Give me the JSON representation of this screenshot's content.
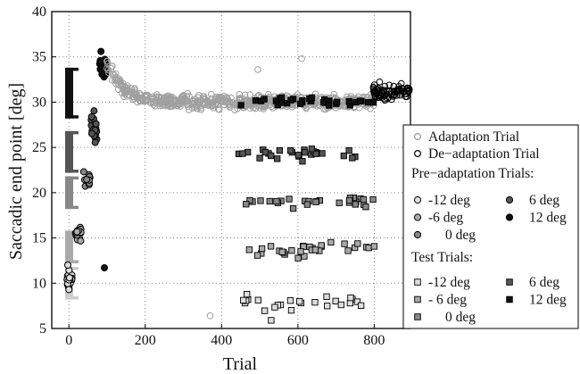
{
  "chart_data": {
    "type": "scatter",
    "xlabel": "Trial",
    "ylabel": "Saccadic end point [deg]",
    "xlim": [
      -45,
      895
    ],
    "ylim": [
      5,
      40
    ],
    "xticks": [
      0,
      200,
      400,
      600,
      800
    ],
    "yticks": [
      5,
      10,
      15,
      20,
      25,
      30,
      35,
      40
    ],
    "grid": true,
    "legend_position": "right",
    "target_bars": [
      {
        "y_low": 8.2,
        "y_high": 11.8,
        "color": "#cccccc"
      },
      {
        "y_low": 12.2,
        "y_high": 15.8,
        "color": "#aaaaaa"
      },
      {
        "y_low": 18.2,
        "y_high": 21.8,
        "color": "#888888"
      },
      {
        "y_low": 22.2,
        "y_high": 26.8,
        "color": "#555555"
      },
      {
        "y_low": 28.2,
        "y_high": 33.8,
        "color": "#111111"
      }
    ],
    "legend": {
      "adaptation": "Adaptation Trial",
      "deadaptation": "De−adaptation Trial",
      "pre_title": "Pre−adaptation Trials:",
      "pre_items": [
        {
          "label": "-12 deg",
          "color": "#dddddd"
        },
        {
          "label": "6 deg",
          "color": "#555555"
        },
        {
          "label": "-6 deg",
          "color": "#aaaaaa"
        },
        {
          "label": "12 deg",
          "color": "#111111"
        },
        {
          "label": "0 deg",
          "color": "#888888"
        }
      ],
      "test_title": "Test Trials:",
      "test_items": [
        {
          "label": "-12 deg",
          "color": "#dddddd"
        },
        {
          "label": "6 deg",
          "color": "#555555"
        },
        {
          "label": "- 6 deg",
          "color": "#aaaaaa"
        },
        {
          "label": "12 deg",
          "color": "#111111"
        },
        {
          "label": "0 deg",
          "color": "#888888"
        }
      ]
    },
    "series": [
      {
        "kind": "pre",
        "color": "#dddddd",
        "x_range": [
          -5,
          8
        ],
        "y_mean": 10.5,
        "y_spread": 1.4,
        "count": 22,
        "extra": [
          [
            -3,
            12
          ],
          [
            0,
            9.3
          ]
        ]
      },
      {
        "kind": "pre",
        "color": "#aaaaaa",
        "x_range": [
          17,
          33
        ],
        "y_mean": 15.5,
        "y_spread": 1.2,
        "count": 18
      },
      {
        "kind": "pre",
        "color": "#888888",
        "x_range": [
          38,
          55
        ],
        "y_mean": 21.5,
        "y_spread": 1.2,
        "count": 18
      },
      {
        "kind": "pre",
        "color": "#555555",
        "x_range": [
          58,
          75
        ],
        "y_mean": 27.3,
        "y_spread": 2.2,
        "count": 20
      },
      {
        "kind": "pre",
        "color": "#111111",
        "x_range": [
          80,
          98
        ],
        "y_mean": 33.8,
        "y_spread": 1.8,
        "count": 18,
        "extra": [
          [
            93,
            11.7
          ],
          [
            84,
            35.6
          ]
        ]
      },
      {
        "kind": "adaptation",
        "x_range": [
          98,
          800
        ],
        "count": 600,
        "extra": [
          [
            370,
            6.4
          ],
          [
            610,
            34.8
          ],
          [
            495,
            33.6
          ]
        ]
      },
      {
        "kind": "deadaptation",
        "x_range": [
          796,
          892
        ],
        "y_mean": 31,
        "count": 80
      },
      {
        "kind": "test",
        "color": "#dddddd",
        "x_range": [
          448,
          800
        ],
        "y_mean": 7.8,
        "y_spread": 1.3,
        "count": 24,
        "extra": [
          [
            530,
            5.9
          ]
        ]
      },
      {
        "kind": "test",
        "color": "#aaaaaa",
        "x_range": [
          465,
          800
        ],
        "y_mean": 13.7,
        "y_spread": 1.3,
        "count": 30
      },
      {
        "kind": "test",
        "color": "#888888",
        "x_range": [
          445,
          800
        ],
        "y_mean": 19.0,
        "y_spread": 0.9,
        "count": 28
      },
      {
        "kind": "test",
        "color": "#555555",
        "x_range": [
          445,
          800
        ],
        "y_mean": 24.2,
        "y_spread": 1.1,
        "count": 28
      },
      {
        "kind": "test",
        "color": "#111111",
        "x_range": [
          445,
          800
        ],
        "y_mean": 30.0,
        "y_spread": 0.8,
        "count": 34
      }
    ]
  }
}
